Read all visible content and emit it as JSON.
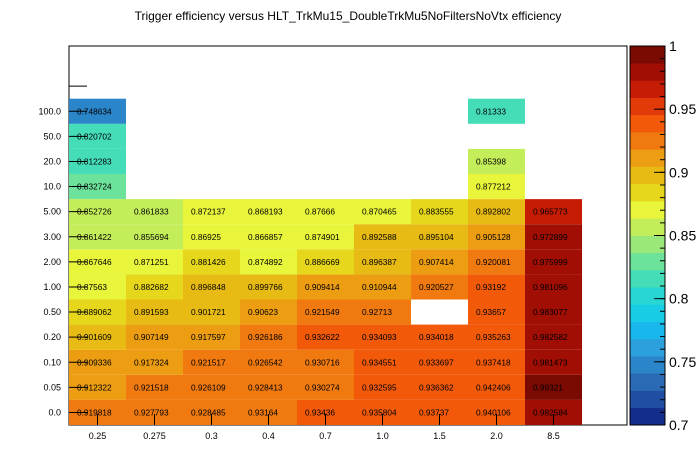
{
  "chart_data": {
    "type": "heatmap",
    "title": "Trigger efficiency versus HLT_TrkMu15_DoubleTrkMu5NoFiltersNoVtx efficiency",
    "x_tick_labels": [
      "0.25",
      "0.275",
      "0.3",
      "0.4",
      "0.7",
      "1.0",
      "1.5",
      "2.0",
      "8.5"
    ],
    "y_tick_labels": [
      "0.0",
      "0.05",
      "0.10",
      "0.20",
      "0.50",
      "1.00",
      "2.00",
      "3.00",
      "5.00",
      "10.0",
      "20.0",
      "50.0",
      "100.0"
    ],
    "z_range": [
      0.7,
      1.0
    ],
    "colorbar_ticks": [
      "0.7",
      "0.75",
      "0.8",
      "0.85",
      "0.9",
      "0.95",
      "1"
    ],
    "colorbar_tick_values": [
      0.7,
      0.75,
      0.8,
      0.85,
      0.9,
      0.95,
      1.0
    ],
    "rows": [
      {
        "y": "0.0",
        "cells": [
          "0.919818",
          "0.927793",
          "0.928485",
          "0.93164",
          "0.93436",
          "0.935804",
          "0.93737",
          "0.940106",
          "0.982584"
        ]
      },
      {
        "y": "0.05",
        "cells": [
          "0.912322",
          "0.921518",
          "0.926109",
          "0.928413",
          "0.930274",
          "0.932595",
          "0.936362",
          "0.942406",
          "0.99321"
        ]
      },
      {
        "y": "0.10",
        "cells": [
          "0.909336",
          "0.917324",
          "0.921517",
          "0.926542",
          "0.930716",
          "0.934551",
          "0.933697",
          "0.937418",
          "0.981473"
        ]
      },
      {
        "y": "0.20",
        "cells": [
          "0.901609",
          "0.907149",
          "0.917597",
          "0.926186",
          "0.932622",
          "0.934093",
          "0.934018",
          "0.935263",
          "0.982582"
        ]
      },
      {
        "y": "0.50",
        "cells": [
          "0.889062",
          "0.891593",
          "0.901721",
          "0.90623",
          "0.921549",
          "0.92713",
          null,
          "0.93657",
          "0.983077"
        ]
      },
      {
        "y": "1.00",
        "cells": [
          "0.87563",
          "0.882682",
          "0.896848",
          "0.899766",
          "0.909414",
          "0.910944",
          "0.920527",
          "0.93192",
          "0.981096"
        ]
      },
      {
        "y": "2.00",
        "cells": [
          "0.867646",
          "0.871251",
          "0.881426",
          "0.874892",
          "0.886669",
          "0.896387",
          "0.907414",
          "0.920081",
          "0.975999"
        ]
      },
      {
        "y": "3.00",
        "cells": [
          "0.861422",
          "0.855694",
          "0.86925",
          "0.866857",
          "0.874901",
          "0.892588",
          "0.895104",
          "0.905128",
          "0.972899"
        ]
      },
      {
        "y": "5.00",
        "cells": [
          "0.852726",
          "0.861833",
          "0.872137",
          "0.868193",
          "0.87666",
          "0.870465",
          "0.883555",
          "0.892802",
          "0.965773"
        ]
      },
      {
        "y": "10.0",
        "cells": [
          "0.832724",
          null,
          null,
          null,
          null,
          null,
          null,
          "0.877212",
          null
        ]
      },
      {
        "y": "20.0",
        "cells": [
          "0.812283",
          null,
          null,
          null,
          null,
          null,
          null,
          "0.85398",
          null
        ]
      },
      {
        "y": "50.0",
        "cells": [
          "0.820702",
          null,
          null,
          null,
          null,
          null,
          null,
          null,
          null
        ]
      },
      {
        "y": "100.0",
        "cells": [
          "0.748634",
          null,
          null,
          null,
          null,
          null,
          null,
          "0.81333",
          null
        ]
      }
    ]
  }
}
